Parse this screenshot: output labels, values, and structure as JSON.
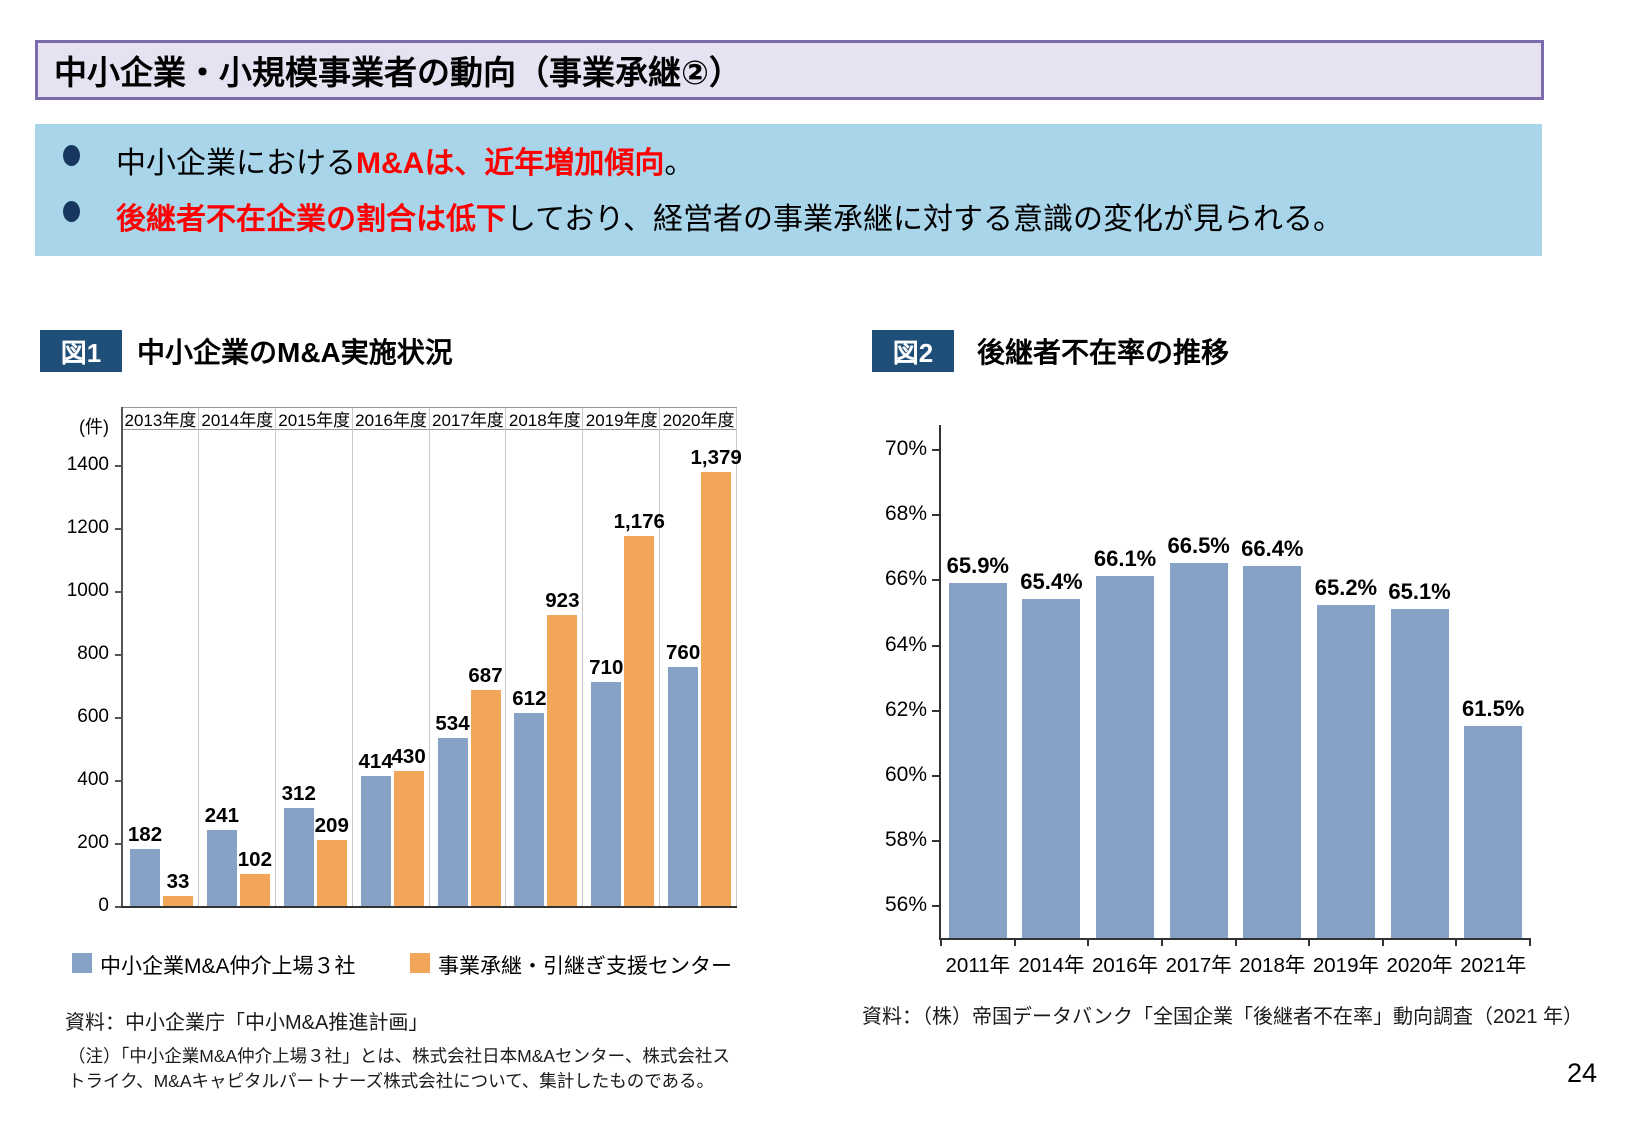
{
  "page": {
    "number": "24"
  },
  "header": {
    "title": "中小企業・小規模事業者の動向（事業承継②）"
  },
  "summary": {
    "bullets": [
      {
        "segments": [
          {
            "text": "中小企業における",
            "em": false
          },
          {
            "text": "M&Aは、近年増加傾向",
            "em": true
          },
          {
            "text": "。",
            "em": false
          }
        ]
      },
      {
        "segments": [
          {
            "text": "後継者不在企業の割合は低下",
            "em": true
          },
          {
            "text": "しており、経営者の事業承継に対する意識の変化が見られる。",
            "em": false
          }
        ]
      }
    ]
  },
  "figure1": {
    "badge": "図1",
    "title": "中小企業のM&A実施状況",
    "source": "資料：中小企業庁「中小M&A推進計画」",
    "note": "（注）「中小企業M&A仲介上場３社」とは、株式会社日本M&Aセンター、株式会社ストライク、M&Aキャピタルパートナーズ株式会社について、集計したものである。"
  },
  "figure2": {
    "badge": "図2",
    "title": "後継者不在率の推移",
    "source": "資料：（株）帝国データバンク「全国企業「後継者不在率」動向調査（2021 年）"
  },
  "chart_data": [
    {
      "id": "chart1",
      "type": "bar",
      "title": "中小企業のM&A実施状況",
      "unit_label": "(件)",
      "categories": [
        "2013年度",
        "2014年度",
        "2015年度",
        "2016年度",
        "2017年度",
        "2018年度",
        "2019年度",
        "2020年度"
      ],
      "series": [
        {
          "name": "中小企業M&A仲介上場３社",
          "color": "#86A2C6",
          "values": [
            182,
            241,
            312,
            414,
            534,
            612,
            710,
            760
          ],
          "labels": [
            "182",
            "241",
            "312",
            "414",
            "534",
            "612",
            "710",
            "760"
          ]
        },
        {
          "name": "事業承継・引継ぎ支援センター",
          "color": "#F2A65A",
          "values": [
            33,
            102,
            209,
            430,
            687,
            923,
            1176,
            1379
          ],
          "labels": [
            "33",
            "102",
            "209",
            "430",
            "687",
            "923",
            "1,176",
            "1,379"
          ]
        }
      ],
      "yticks": [
        0,
        200,
        400,
        600,
        800,
        1000,
        1200,
        1400
      ],
      "ylim": [
        0,
        1400
      ],
      "grid": "vertical-column-dividers",
      "legend_position": "bottom"
    },
    {
      "id": "chart2",
      "type": "bar",
      "title": "後継者不在率の推移",
      "categories": [
        "2011年",
        "2014年",
        "2016年",
        "2017年",
        "2018年",
        "2019年",
        "2020年",
        "2021年"
      ],
      "values": [
        65.9,
        65.4,
        66.1,
        66.5,
        66.4,
        65.2,
        65.1,
        61.5
      ],
      "labels": [
        "65.9%",
        "65.4%",
        "66.1%",
        "66.5%",
        "66.4%",
        "65.2%",
        "65.1%",
        "61.5%"
      ],
      "bar_color": "#86A2C6",
      "yticks": [
        56,
        58,
        60,
        62,
        64,
        66,
        68,
        70
      ],
      "ytick_labels": [
        "56%",
        "58%",
        "60%",
        "62%",
        "64%",
        "66%",
        "68%",
        "70%"
      ],
      "ylim": [
        55,
        71
      ],
      "baseline": 55,
      "grid": "off",
      "legend_position": "none"
    }
  ],
  "colors": {
    "title_bg": "#E7E2F1",
    "title_border": "#7C6BAC",
    "summary_bg": "#A9D5EA",
    "bullet_navy": "#17375E",
    "em_red": "#FF0000",
    "badge_bg": "#1F4E79",
    "bar_blue": "#86A2C6",
    "bar_orange": "#F2A65A",
    "axis_dark": "#333333",
    "axis_mid": "#555555",
    "grid_gray": "#C8C8C8"
  }
}
